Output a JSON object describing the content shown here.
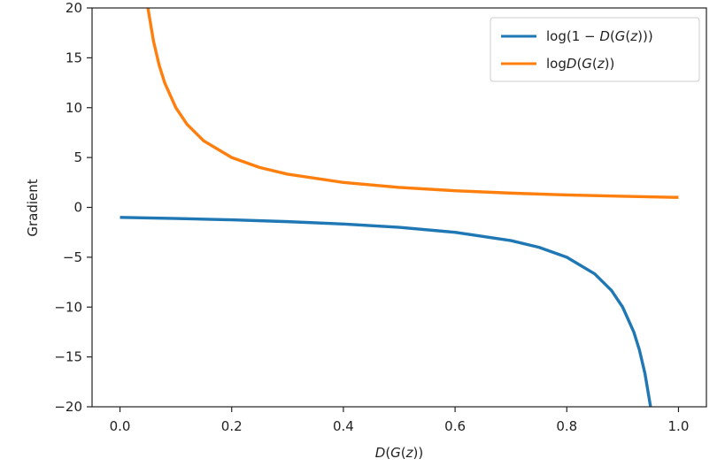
{
  "chart_data": {
    "type": "line",
    "title": "",
    "xlabel": "D(G(z))",
    "ylabel": "Gradient",
    "xlim": [
      -0.05,
      1.05
    ],
    "ylim": [
      -20,
      20
    ],
    "grid": false,
    "legend_position": "top-right",
    "x_ticks": [
      0.0,
      0.2,
      0.4,
      0.6,
      0.8,
      1.0
    ],
    "x_tick_labels": [
      "0.0",
      "0.2",
      "0.4",
      "0.6",
      "0.8",
      "1.0"
    ],
    "y_ticks": [
      20,
      15,
      10,
      5,
      0,
      -5,
      -10,
      -15,
      -20
    ],
    "y_tick_labels": [
      "20",
      "15",
      "10",
      "5",
      "0",
      "−5",
      "−10",
      "−15",
      "−20"
    ],
    "series": [
      {
        "name": "log(1 − D(G(z)))",
        "color": "#1f77b4",
        "x": [
          0.0,
          0.1,
          0.2,
          0.3,
          0.4,
          0.5,
          0.6,
          0.7,
          0.75,
          0.8,
          0.85,
          0.88,
          0.9,
          0.92,
          0.93,
          0.94,
          0.95
        ],
        "values": [
          -1.0,
          -1.11,
          -1.25,
          -1.43,
          -1.67,
          -2.0,
          -2.5,
          -3.33,
          -4.0,
          -5.0,
          -6.67,
          -8.33,
          -10.0,
          -12.5,
          -14.29,
          -16.67,
          -20.0
        ]
      },
      {
        "name": "logD(G(z))",
        "color": "#ff7f0e",
        "x": [
          0.05,
          0.06,
          0.07,
          0.08,
          0.1,
          0.12,
          0.15,
          0.2,
          0.25,
          0.3,
          0.4,
          0.5,
          0.6,
          0.7,
          0.8,
          0.9,
          1.0
        ],
        "values": [
          20.0,
          16.67,
          14.29,
          12.5,
          10.0,
          8.33,
          6.67,
          5.0,
          4.0,
          3.33,
          2.5,
          2.0,
          1.67,
          1.43,
          1.25,
          1.11,
          1.0
        ]
      }
    ]
  },
  "legend": {
    "item_1": {
      "prefix": "log(1 − ",
      "var": "D",
      "mid": "(",
      "var2": "G",
      "mid2": "(",
      "var3": "z",
      "suffix": ")))"
    },
    "item_2": {
      "prefix": "log",
      "var": "D",
      "mid": "(",
      "var2": "G",
      "mid2": "(",
      "var3": "z",
      "suffix": "))"
    }
  },
  "axis_label_parts": {
    "x": {
      "var": "D",
      "mid": "(",
      "var2": "G",
      "mid2": "(",
      "var3": "z",
      "suffix": "))"
    }
  }
}
